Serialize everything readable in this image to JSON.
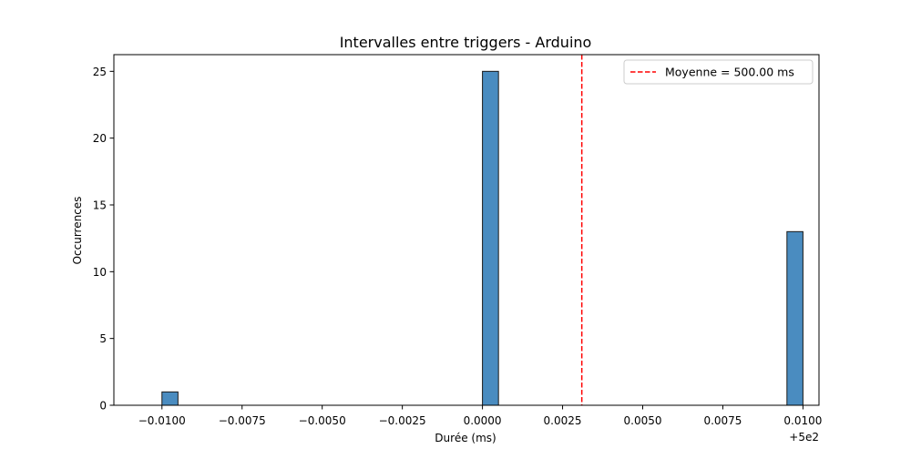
{
  "chart_data": {
    "type": "bar",
    "title": "Intervalles entre triggers - Arduino",
    "xlabel": "Durée (ms)",
    "ylabel": "Occurrences",
    "x_offset_label": "+5e2",
    "xlim": [
      499.9885,
      500.0105
    ],
    "ylim": [
      0,
      26.25
    ],
    "bin_width": 0.0005,
    "bins": [
      {
        "start": 499.99,
        "end": 499.9905,
        "count": 1
      },
      {
        "start": 500.0,
        "end": 500.0005,
        "count": 25
      },
      {
        "start": 500.0095,
        "end": 500.01,
        "count": 13
      }
    ],
    "bar_color": "#4a8cc0",
    "x_ticks": [
      {
        "value": 499.99,
        "label": "−0.0100"
      },
      {
        "value": 499.9925,
        "label": "−0.0075"
      },
      {
        "value": 499.995,
        "label": "−0.0050"
      },
      {
        "value": 499.9975,
        "label": "−0.0025"
      },
      {
        "value": 500.0,
        "label": "0.0000"
      },
      {
        "value": 500.0025,
        "label": "0.0025"
      },
      {
        "value": 500.005,
        "label": "0.0050"
      },
      {
        "value": 500.0075,
        "label": "0.0075"
      },
      {
        "value": 500.01,
        "label": "0.0100"
      }
    ],
    "y_ticks": [
      {
        "value": 0,
        "label": "0"
      },
      {
        "value": 5,
        "label": "5"
      },
      {
        "value": 10,
        "label": "10"
      },
      {
        "value": 15,
        "label": "15"
      },
      {
        "value": 20,
        "label": "20"
      },
      {
        "value": 25,
        "label": "25"
      }
    ],
    "mean_line": {
      "value": 500.0031,
      "color": "#ff0000",
      "style": "dashed",
      "label": "Moyenne = 500.00 ms"
    },
    "legend": {
      "placement": "top-right"
    },
    "grid": false
  }
}
